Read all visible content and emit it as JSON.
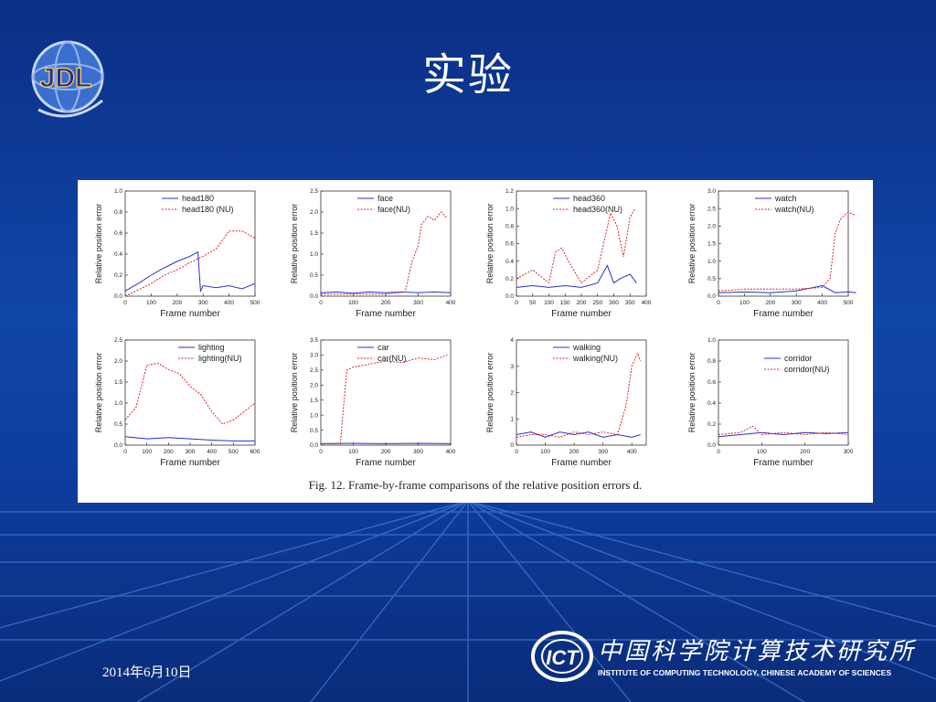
{
  "slide": {
    "title": "实验",
    "date": "2014年6月10日",
    "logo_left_text": "JDL",
    "logo_right_text": "ICT",
    "org_name_cn": "中国科学院计算技术研究所",
    "org_name_en": "INSTITUTE OF COMPUTING TECHNOLOGY, CHINESE ACADEMY OF SCIENCES",
    "background_color": "#0d3c9c"
  },
  "figure": {
    "caption": "Fig. 12.   Frame-by-frame comparisons of the relative position errors d."
  },
  "chart_data": [
    {
      "type": "line",
      "xlabel": "Frame number",
      "ylabel": "Relative position error",
      "xlim": [
        0,
        500
      ],
      "ylim": [
        0,
        1.0
      ],
      "xticks": [
        0,
        100,
        200,
        300,
        400,
        500
      ],
      "yticks": [
        0,
        0.2,
        0.4,
        0.6,
        0.8,
        1.0
      ],
      "ytick_labels": [
        "0.0",
        "0.2",
        "0.4",
        "0.6",
        "0.8",
        "1.0"
      ],
      "legend_position": "top-center",
      "series": [
        {
          "name": "head180",
          "color": "#2233cc",
          "style": "solid",
          "x": [
            0,
            50,
            100,
            150,
            200,
            250,
            280,
            290,
            300,
            350,
            400,
            450,
            500
          ],
          "y": [
            0.05,
            0.12,
            0.2,
            0.27,
            0.33,
            0.38,
            0.42,
            0.05,
            0.1,
            0.08,
            0.1,
            0.07,
            0.12
          ]
        },
        {
          "name": "head180 (NU)",
          "color": "#dd2222",
          "style": "dashed",
          "x": [
            0,
            50,
            100,
            150,
            200,
            250,
            300,
            350,
            380,
            400,
            450,
            500
          ],
          "y": [
            0.0,
            0.06,
            0.12,
            0.2,
            0.25,
            0.32,
            0.38,
            0.45,
            0.55,
            0.62,
            0.62,
            0.55
          ]
        }
      ]
    },
    {
      "type": "line",
      "xlabel": "Frame number",
      "ylabel": "Relative position error",
      "xlim": [
        0,
        400
      ],
      "ylim": [
        0,
        2.5
      ],
      "xticks": [
        0,
        100,
        200,
        300,
        400
      ],
      "yticks": [
        0,
        0.5,
        1.0,
        1.5,
        2.0,
        2.5
      ],
      "ytick_labels": [
        "0.0",
        "0.5",
        "1.0",
        "1.5",
        "2.0",
        "2.5"
      ],
      "legend_position": "top-center",
      "series": [
        {
          "name": "face",
          "color": "#2233cc",
          "style": "solid",
          "x": [
            0,
            50,
            100,
            150,
            200,
            250,
            300,
            350,
            400
          ],
          "y": [
            0.08,
            0.1,
            0.07,
            0.1,
            0.08,
            0.1,
            0.08,
            0.1,
            0.08
          ]
        },
        {
          "name": "face(NU)",
          "color": "#dd2222",
          "style": "dashed",
          "x": [
            0,
            100,
            200,
            260,
            280,
            300,
            310,
            330,
            350,
            370,
            390
          ],
          "y": [
            0.05,
            0.05,
            0.05,
            0.1,
            0.8,
            1.2,
            1.7,
            1.9,
            1.8,
            2.0,
            1.85
          ]
        }
      ]
    },
    {
      "type": "line",
      "xlabel": "Frame number",
      "ylabel": "Relative position error",
      "xlim": [
        0,
        400
      ],
      "ylim": [
        0,
        1.2
      ],
      "xticks": [
        0,
        50,
        100,
        150,
        200,
        250,
        300,
        350,
        400
      ],
      "yticks": [
        0,
        0.2,
        0.4,
        0.6,
        0.8,
        1.0,
        1.2
      ],
      "ytick_labels": [
        "0.0",
        "0.2",
        "0.4",
        "0.6",
        "0.8",
        "1.0",
        "1.2"
      ],
      "legend_position": "top-center",
      "series": [
        {
          "name": "head360",
          "color": "#2233cc",
          "style": "solid",
          "x": [
            0,
            50,
            100,
            150,
            200,
            250,
            280,
            300,
            320,
            350,
            370
          ],
          "y": [
            0.1,
            0.12,
            0.1,
            0.12,
            0.1,
            0.15,
            0.35,
            0.15,
            0.2,
            0.25,
            0.15
          ]
        },
        {
          "name": "head360(NU)",
          "color": "#dd2222",
          "style": "dashed",
          "x": [
            0,
            50,
            100,
            120,
            140,
            160,
            200,
            250,
            290,
            310,
            330,
            350,
            365
          ],
          "y": [
            0.2,
            0.3,
            0.15,
            0.5,
            0.55,
            0.4,
            0.15,
            0.3,
            0.95,
            0.8,
            0.45,
            0.9,
            1.0
          ]
        }
      ]
    },
    {
      "type": "line",
      "xlabel": "Frame number",
      "ylabel": "Relative position error",
      "xlim": [
        0,
        500
      ],
      "ylim": [
        0,
        3.0
      ],
      "xticks": [
        0,
        100,
        200,
        300,
        400,
        500
      ],
      "yticks": [
        0,
        0.5,
        1.0,
        1.5,
        2.0,
        2.5,
        3.0
      ],
      "ytick_labels": [
        "0.0",
        "0.5",
        "1.0",
        "1.5",
        "2.0",
        "2.5",
        "3.0"
      ],
      "legend_position": "top-center",
      "series": [
        {
          "name": "watch",
          "color": "#2233cc",
          "style": "solid",
          "x": [
            0,
            100,
            200,
            300,
            400,
            450,
            500,
            530
          ],
          "y": [
            0.1,
            0.12,
            0.1,
            0.15,
            0.3,
            0.1,
            0.12,
            0.1
          ]
        },
        {
          "name": "watch(NU)",
          "color": "#dd2222",
          "style": "dashed",
          "x": [
            0,
            100,
            200,
            300,
            400,
            430,
            450,
            470,
            500,
            530
          ],
          "y": [
            0.15,
            0.2,
            0.2,
            0.2,
            0.25,
            0.5,
            1.8,
            2.2,
            2.4,
            2.3
          ]
        }
      ]
    },
    {
      "type": "line",
      "xlabel": "Frame number",
      "ylabel": "Relative position error",
      "xlim": [
        0,
        600
      ],
      "ylim": [
        0,
        2.5
      ],
      "xticks": [
        0,
        100,
        200,
        300,
        400,
        500,
        600
      ],
      "yticks": [
        0,
        0.5,
        1.0,
        1.5,
        2.0,
        2.5
      ],
      "ytick_labels": [
        "0.0",
        "0.5",
        "1.0",
        "1.5",
        "2.0",
        "2.5"
      ],
      "legend_position": "top-right",
      "series": [
        {
          "name": "lighting",
          "color": "#2233cc",
          "style": "solid",
          "x": [
            0,
            100,
            200,
            300,
            400,
            500,
            600
          ],
          "y": [
            0.2,
            0.15,
            0.18,
            0.15,
            0.12,
            0.1,
            0.1
          ]
        },
        {
          "name": "lighting(NU)",
          "color": "#dd2222",
          "style": "dashed",
          "x": [
            0,
            50,
            100,
            150,
            200,
            250,
            300,
            350,
            400,
            450,
            500,
            550,
            600
          ],
          "y": [
            0.6,
            0.9,
            1.9,
            1.95,
            1.8,
            1.7,
            1.4,
            1.2,
            0.8,
            0.5,
            0.6,
            0.8,
            1.0
          ]
        }
      ]
    },
    {
      "type": "line",
      "xlabel": "Frame number",
      "ylabel": "Relative position error",
      "xlim": [
        0,
        400
      ],
      "ylim": [
        0,
        3.5
      ],
      "xticks": [
        0,
        100,
        200,
        300,
        400
      ],
      "yticks": [
        0,
        0.5,
        1.0,
        1.5,
        2.0,
        2.5,
        3.0,
        3.5
      ],
      "ytick_labels": [
        "0.0",
        "0.5",
        "1.0",
        "1.5",
        "2.0",
        "2.5",
        "3.0",
        "3.5"
      ],
      "legend_position": "top-center",
      "series": [
        {
          "name": "car",
          "color": "#2233cc",
          "style": "solid",
          "x": [
            0,
            100,
            200,
            300,
            400
          ],
          "y": [
            0.05,
            0.06,
            0.05,
            0.06,
            0.05
          ]
        },
        {
          "name": "car(NU)",
          "color": "#dd2222",
          "style": "dashed",
          "x": [
            0,
            60,
            80,
            100,
            150,
            200,
            250,
            300,
            350,
            390
          ],
          "y": [
            0.05,
            0.05,
            2.5,
            2.6,
            2.7,
            2.8,
            2.75,
            2.9,
            2.85,
            3.0
          ]
        }
      ]
    },
    {
      "type": "line",
      "xlabel": "Frame number",
      "ylabel": "Relative position error",
      "xlim": [
        0,
        450
      ],
      "ylim": [
        0,
        4
      ],
      "xticks": [
        0,
        100,
        200,
        300,
        400
      ],
      "yticks": [
        0,
        1,
        2,
        3,
        4
      ],
      "ytick_labels": [
        "0",
        "1",
        "2",
        "3",
        "4"
      ],
      "legend_position": "top-center",
      "series": [
        {
          "name": "walking",
          "color": "#2233cc",
          "style": "solid",
          "x": [
            0,
            50,
            100,
            150,
            200,
            250,
            300,
            350,
            400,
            430
          ],
          "y": [
            0.4,
            0.5,
            0.3,
            0.5,
            0.4,
            0.5,
            0.3,
            0.4,
            0.3,
            0.4
          ]
        },
        {
          "name": "walking(NU)",
          "color": "#dd2222",
          "style": "dashed",
          "x": [
            0,
            50,
            100,
            150,
            200,
            250,
            300,
            350,
            380,
            400,
            420,
            430
          ],
          "y": [
            0.3,
            0.4,
            0.4,
            0.3,
            0.5,
            0.4,
            0.5,
            0.4,
            1.5,
            3.0,
            3.5,
            3.2
          ]
        }
      ]
    },
    {
      "type": "line",
      "xlabel": "Frame number",
      "ylabel": "Relative position error",
      "xlim": [
        0,
        300
      ],
      "ylim": [
        0,
        1.0
      ],
      "xticks": [
        0,
        100,
        200,
        300
      ],
      "yticks": [
        0,
        0.2,
        0.4,
        0.6,
        0.8,
        1.0
      ],
      "ytick_labels": [
        "0.0",
        "0.2",
        "0.4",
        "0.6",
        "0.8",
        "1.0"
      ],
      "legend_position": "center-right",
      "series": [
        {
          "name": "corridor",
          "color": "#2233cc",
          "style": "solid",
          "x": [
            0,
            50,
            100,
            150,
            200,
            250,
            300
          ],
          "y": [
            0.08,
            0.1,
            0.12,
            0.1,
            0.12,
            0.11,
            0.12
          ]
        },
        {
          "name": "corridor(NU)",
          "color": "#dd2222",
          "style": "dashed",
          "x": [
            0,
            50,
            80,
            100,
            150,
            200,
            250,
            300
          ],
          "y": [
            0.1,
            0.12,
            0.18,
            0.1,
            0.12,
            0.1,
            0.12,
            0.1
          ]
        }
      ]
    }
  ]
}
